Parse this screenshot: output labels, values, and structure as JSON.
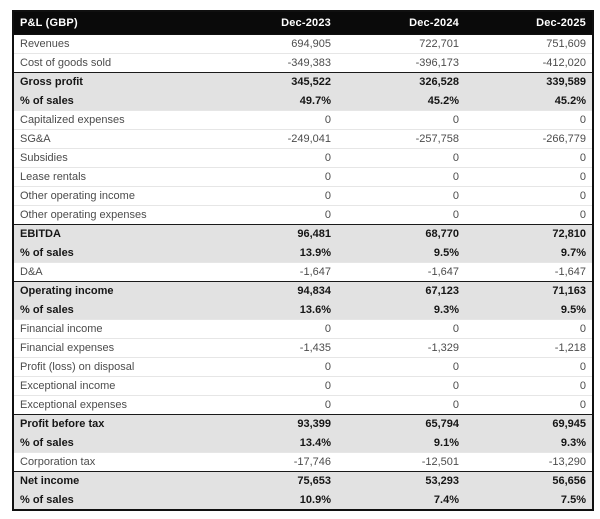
{
  "table": {
    "title": "P&L (GBP)",
    "columns": [
      "Dec-2023",
      "Dec-2024",
      "Dec-2025"
    ],
    "rows": [
      {
        "label": "Revenues",
        "values": [
          "694,905",
          "722,701",
          "751,609"
        ],
        "emphasis": false,
        "section_start": false
      },
      {
        "label": "Cost of goods sold",
        "values": [
          "-349,383",
          "-396,173",
          "-412,020"
        ],
        "emphasis": false,
        "section_start": false
      },
      {
        "label": "Gross profit",
        "values": [
          "345,522",
          "326,528",
          "339,589"
        ],
        "emphasis": true,
        "section_start": true
      },
      {
        "label": "% of sales",
        "values": [
          "49.7%",
          "45.2%",
          "45.2%"
        ],
        "emphasis": true,
        "section_start": false
      },
      {
        "label": "Capitalized expenses",
        "values": [
          "0",
          "0",
          "0"
        ],
        "emphasis": false,
        "section_start": false
      },
      {
        "label": "SG&A",
        "values": [
          "-249,041",
          "-257,758",
          "-266,779"
        ],
        "emphasis": false,
        "section_start": false
      },
      {
        "label": "Subsidies",
        "values": [
          "0",
          "0",
          "0"
        ],
        "emphasis": false,
        "section_start": false
      },
      {
        "label": "Lease rentals",
        "values": [
          "0",
          "0",
          "0"
        ],
        "emphasis": false,
        "section_start": false
      },
      {
        "label": "Other operating income",
        "values": [
          "0",
          "0",
          "0"
        ],
        "emphasis": false,
        "section_start": false
      },
      {
        "label": "Other operating expenses",
        "values": [
          "0",
          "0",
          "0"
        ],
        "emphasis": false,
        "section_start": false
      },
      {
        "label": "EBITDA",
        "values": [
          "96,481",
          "68,770",
          "72,810"
        ],
        "emphasis": true,
        "section_start": true
      },
      {
        "label": "% of sales",
        "values": [
          "13.9%",
          "9.5%",
          "9.7%"
        ],
        "emphasis": true,
        "section_start": false
      },
      {
        "label": "D&A",
        "values": [
          "-1,647",
          "-1,647",
          "-1,647"
        ],
        "emphasis": false,
        "section_start": false
      },
      {
        "label": "Operating income",
        "values": [
          "94,834",
          "67,123",
          "71,163"
        ],
        "emphasis": true,
        "section_start": true
      },
      {
        "label": "% of sales",
        "values": [
          "13.6%",
          "9.3%",
          "9.5%"
        ],
        "emphasis": true,
        "section_start": false
      },
      {
        "label": "Financial income",
        "values": [
          "0",
          "0",
          "0"
        ],
        "emphasis": false,
        "section_start": false
      },
      {
        "label": "Financial expenses",
        "values": [
          "-1,435",
          "-1,329",
          "-1,218"
        ],
        "emphasis": false,
        "section_start": false
      },
      {
        "label": "Profit (loss) on disposal",
        "values": [
          "0",
          "0",
          "0"
        ],
        "emphasis": false,
        "section_start": false
      },
      {
        "label": "Exceptional income",
        "values": [
          "0",
          "0",
          "0"
        ],
        "emphasis": false,
        "section_start": false
      },
      {
        "label": "Exceptional expenses",
        "values": [
          "0",
          "0",
          "0"
        ],
        "emphasis": false,
        "section_start": false
      },
      {
        "label": "Profit before tax",
        "values": [
          "93,399",
          "65,794",
          "69,945"
        ],
        "emphasis": true,
        "section_start": true
      },
      {
        "label": "% of sales",
        "values": [
          "13.4%",
          "9.1%",
          "9.3%"
        ],
        "emphasis": true,
        "section_start": false
      },
      {
        "label": "Corporation tax",
        "values": [
          "-17,746",
          "-12,501",
          "-13,290"
        ],
        "emphasis": false,
        "section_start": false
      },
      {
        "label": "Net income",
        "values": [
          "75,653",
          "53,293",
          "56,656"
        ],
        "emphasis": true,
        "section_start": true
      },
      {
        "label": "% of sales",
        "values": [
          "10.9%",
          "7.4%",
          "7.5%"
        ],
        "emphasis": true,
        "section_start": false
      }
    ]
  },
  "colors": {
    "header_bg": "#0a0a0a",
    "header_text": "#ffffff",
    "emphasis_row_bg": "#e2e2e2",
    "emphasis_text": "#161616",
    "body_text": "#4c4c4c",
    "outer_border": "#101010",
    "row_divider": "#e6e6e6"
  }
}
